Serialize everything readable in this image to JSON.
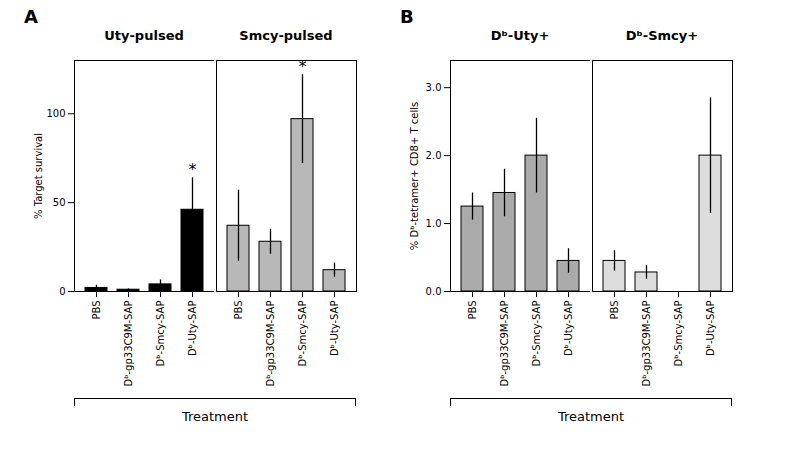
{
  "chart_data": [
    {
      "type": "bar",
      "title": "Uty-pulsed",
      "ylabel": "% Target survival",
      "categories": [
        "PBS",
        "Dᵇ-gp33C9M-SAP",
        "Dᵇ-Smcy-SAP",
        "Dᵇ-Uty-SAP"
      ],
      "values": [
        2,
        1,
        4,
        46
      ],
      "errors": [
        1.5,
        0.5,
        2.5,
        18
      ],
      "color": "#000000",
      "ylim": [
        0,
        130
      ],
      "yticks": [
        0,
        50,
        100
      ],
      "xlabel": "Treatment",
      "annotations": [
        {
          "text": "A"
        },
        {
          "text": "*",
          "category": "Dᵇ-Uty-SAP"
        }
      ]
    },
    {
      "type": "bar",
      "title": "Smcy-pulsed",
      "categories": [
        "PBS",
        "Dᵇ-gp33C9M-SAP",
        "Dᵇ-Smcy-SAP",
        "Dᵇ-Uty-SAP"
      ],
      "values": [
        37,
        28,
        97,
        12
      ],
      "errors": [
        20,
        7,
        25,
        4
      ],
      "color": "#b8b8b8",
      "ylim": [
        0,
        130
      ],
      "tick_labels": "x",
      "annotations": [
        {
          "text": "*",
          "category": "Dᵇ-Smcy-SAP"
        }
      ]
    },
    {
      "type": "bar",
      "title": "Dᵇ-Uty+",
      "ylabel": "% Dᵇ-tetramer+ CD8+ T cells",
      "categories": [
        "PBS",
        "Dᵇ-gp33C9M-SAP",
        "Dᵇ-Smcy-SAP",
        "Dᵇ-Uty-SAP"
      ],
      "values": [
        1.25,
        1.45,
        2.0,
        0.45
      ],
      "errors": [
        0.2,
        0.35,
        0.55,
        0.18
      ],
      "color": "#aaaaaa",
      "ylim": [
        0,
        3.4
      ],
      "yticks": [
        0,
        1,
        2,
        3
      ],
      "xlabel": "Treatment",
      "annotations": [
        {
          "text": "B"
        }
      ]
    },
    {
      "type": "bar",
      "title": "Dᵇ-Smcy+",
      "categories": [
        "PBS",
        "Dᵇ-gp33C9M-SAP",
        "Dᵇ-Smcy-SAP",
        "Dᵇ-Uty-SAP"
      ],
      "values": [
        0.45,
        0.28,
        null,
        2.0
      ],
      "errors": [
        0.15,
        0.1,
        null,
        0.85
      ],
      "color": "#dddddd",
      "ylim": [
        0,
        3.4
      ],
      "tick_labels": "x"
    }
  ]
}
